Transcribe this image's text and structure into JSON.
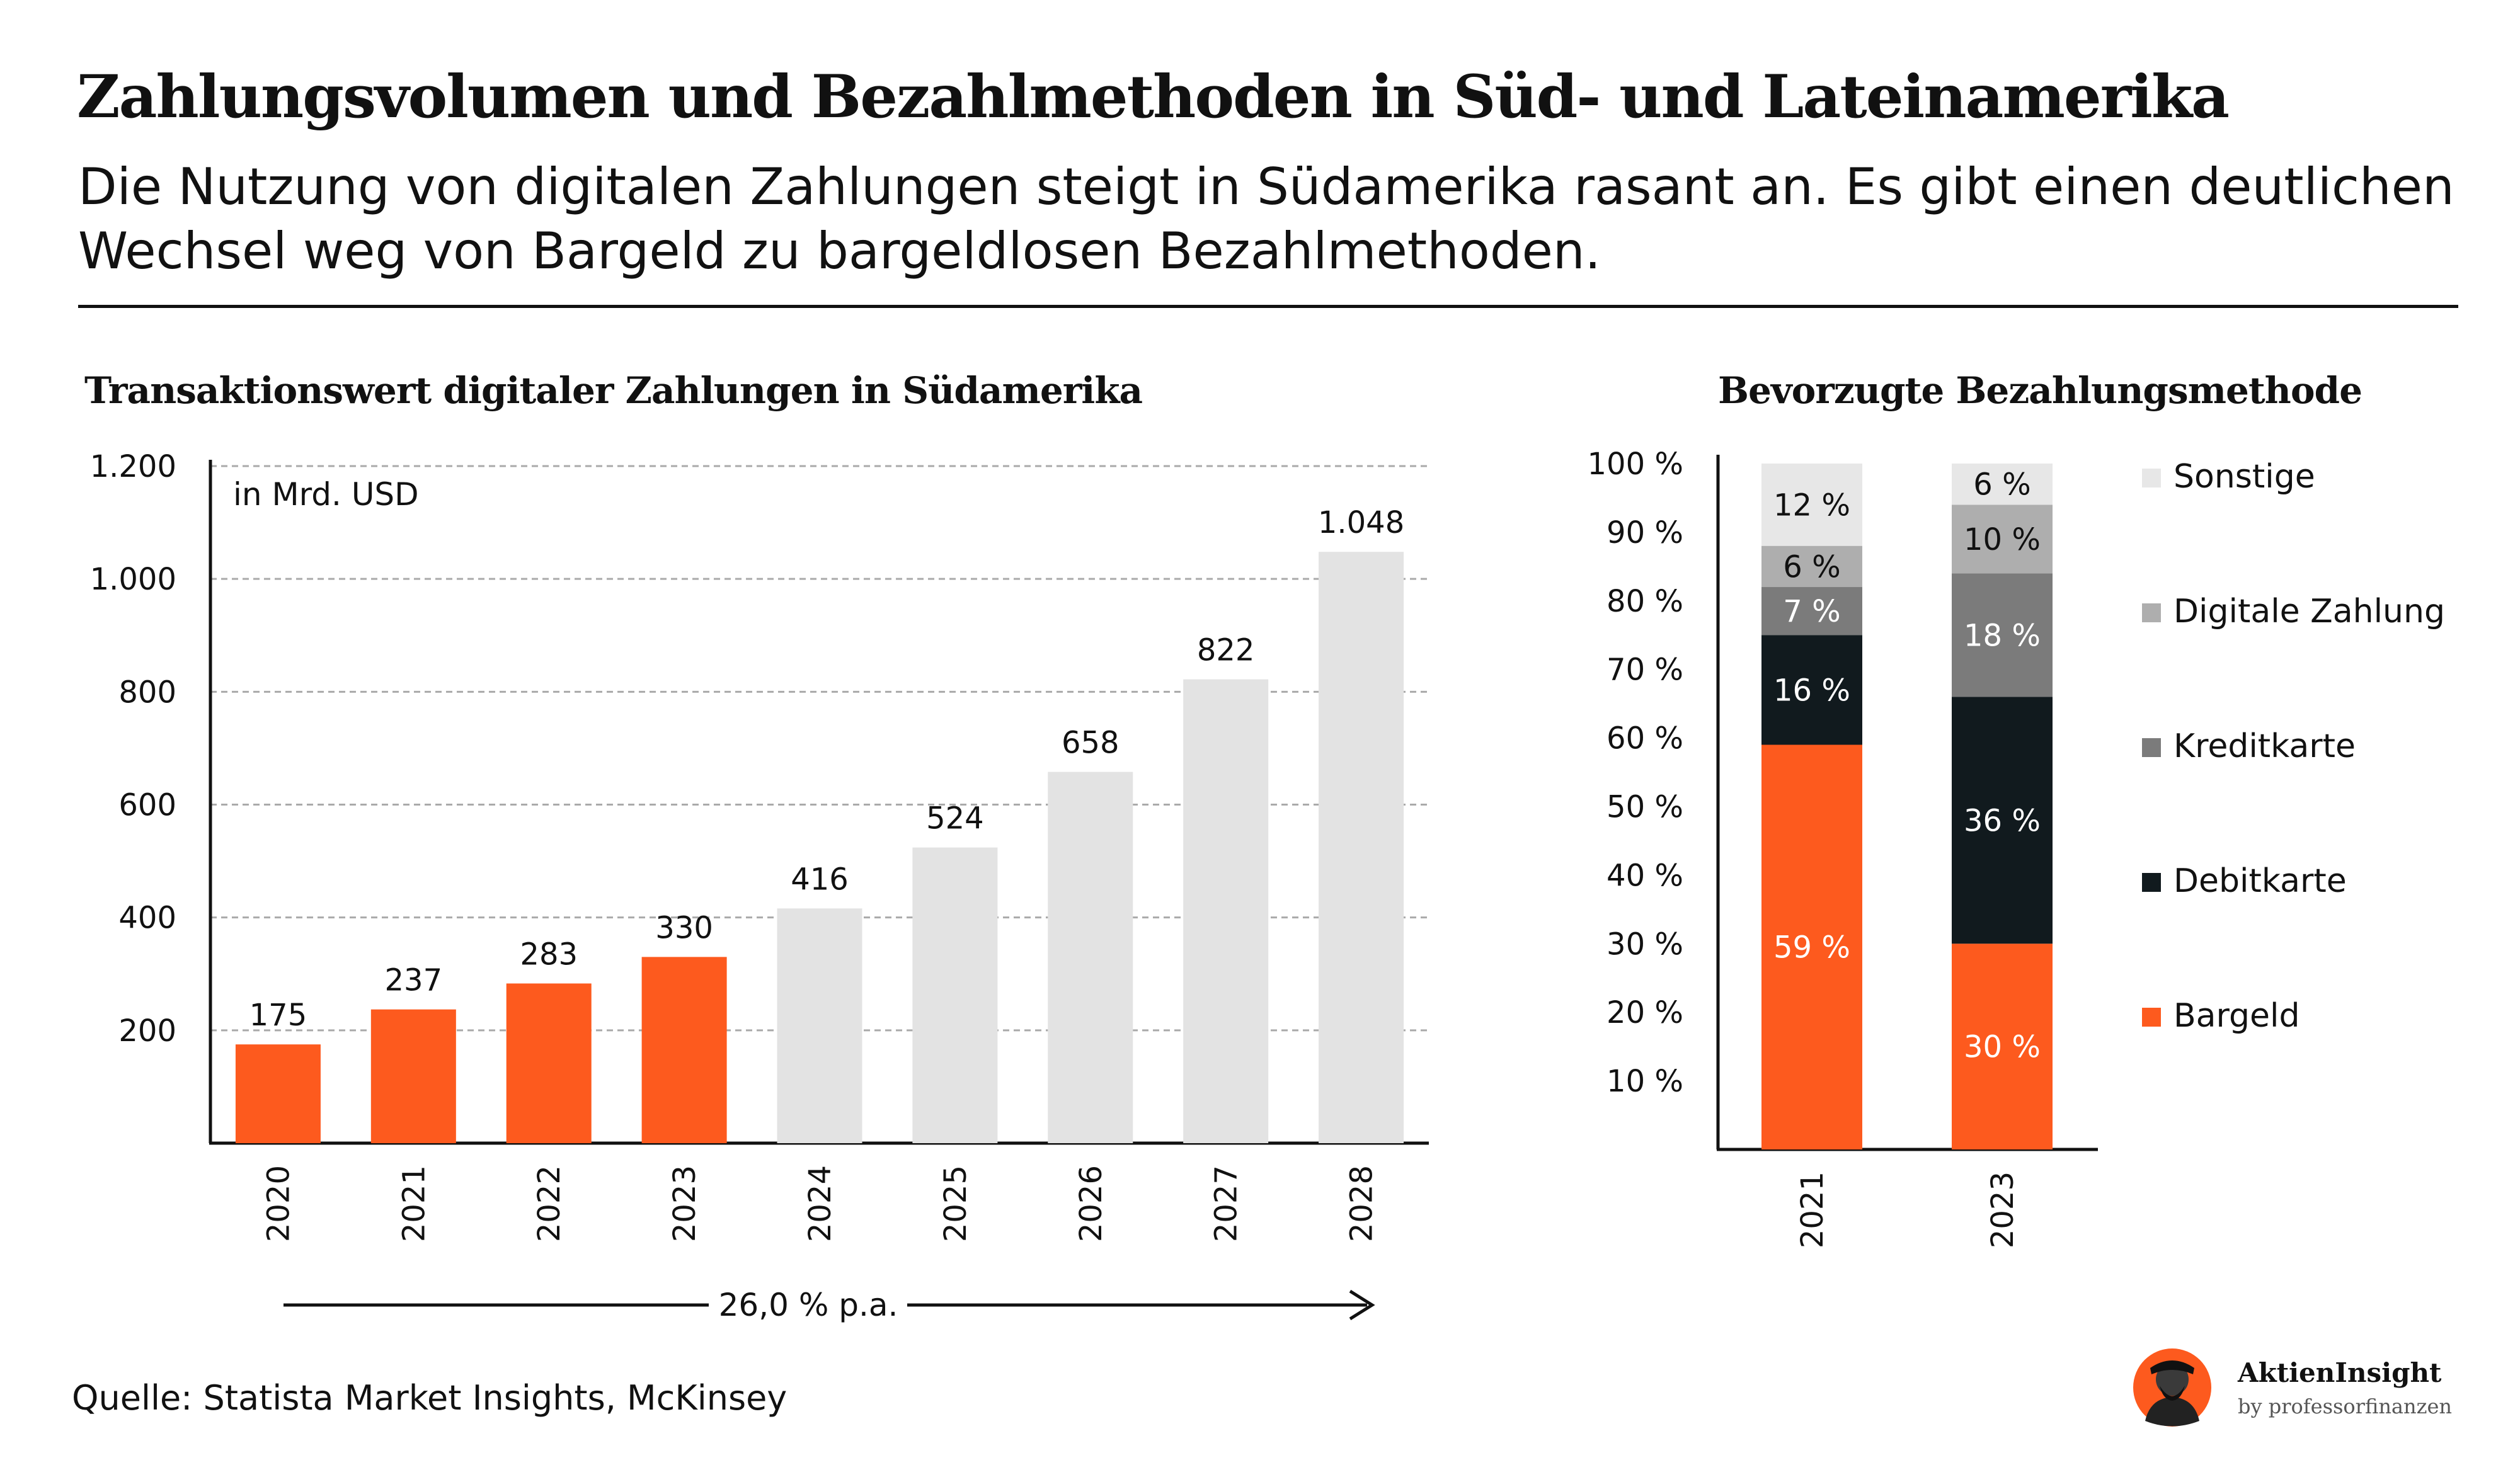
{
  "header": {
    "title": "Zahlungsvolumen und Bezahlmethoden in Süd- und Lateinamerika",
    "subtitle": "Die Nutzung von digitalen Zahlungen steigt in Südamerika rasant an. Es gibt einen deutlichen Wechsel weg von Bargeld zu bargeldlosen Bezahlmethoden."
  },
  "colors": {
    "orange": "#fd5a1e",
    "light_gray": "#e3e3e3",
    "black": "#111a1e",
    "mid_gray": "#7b7b7b",
    "silver": "#aeaeae",
    "pale_gray": "#e7e7e7",
    "grid": "#aaaaaa"
  },
  "chart_data": [
    {
      "type": "bar",
      "title": "Transaktionswert digitaler Zahlungen in Südamerika",
      "unit_label": "in Mrd. USD",
      "categories": [
        "2020",
        "2021",
        "2022",
        "2023",
        "2024",
        "2025",
        "2026",
        "2027",
        "2028"
      ],
      "values": [
        175,
        237,
        283,
        330,
        416,
        524,
        658,
        822,
        1048
      ],
      "value_labels": [
        "175",
        "237",
        "283",
        "330",
        "416",
        "524",
        "658",
        "822",
        "1.048"
      ],
      "actual_count": 4,
      "ylim": [
        0,
        1200
      ],
      "yticks": [
        200,
        400,
        600,
        800,
        1000,
        1200
      ],
      "ytick_labels": [
        "200",
        "400",
        "600",
        "800",
        "1.000",
        "1.200"
      ],
      "grid": true,
      "annotation": "26,0 % p.a."
    },
    {
      "type": "bar",
      "stacked": true,
      "title": "Bevorzugte Bezahlungsmethode",
      "categories": [
        "2021",
        "2023"
      ],
      "ylim": [
        0,
        100
      ],
      "yticks": [
        10,
        20,
        30,
        40,
        50,
        60,
        70,
        80,
        90,
        100
      ],
      "ytick_labels": [
        "10 %",
        "20 %",
        "30 %",
        "40 %",
        "50 %",
        "60 %",
        "70 %",
        "80 %",
        "90 %",
        "100 %"
      ],
      "legend_position": "right",
      "series": [
        {
          "name": "Bargeld",
          "values": [
            59,
            30
          ],
          "labels": [
            "59 %",
            "30 %"
          ],
          "color": "#fd5a1e",
          "text_color": "#ffffff"
        },
        {
          "name": "Debitkarte",
          "values": [
            16,
            36
          ],
          "labels": [
            "16 %",
            "36 %"
          ],
          "color": "#111a1e",
          "text_color": "#ffffff"
        },
        {
          "name": "Kreditkarte",
          "values": [
            7,
            18
          ],
          "labels": [
            "7 %",
            "18 %"
          ],
          "color": "#7b7b7b",
          "text_color": "#ffffff"
        },
        {
          "name": "Digitale Zahlung",
          "values": [
            6,
            10
          ],
          "labels": [
            "6 %",
            "10 %"
          ],
          "color": "#aeaeae",
          "text_color": "#111111"
        },
        {
          "name": "Sonstige",
          "values": [
            12,
            6
          ],
          "labels": [
            "12 %",
            "6 %"
          ],
          "color": "#e7e7e7",
          "text_color": "#111111"
        }
      ]
    }
  ],
  "footer": {
    "source": "Quelle: Statista Market Insights, McKinsey",
    "brand_name": "AktienInsight",
    "brand_sub": "by professorfinanzen"
  }
}
